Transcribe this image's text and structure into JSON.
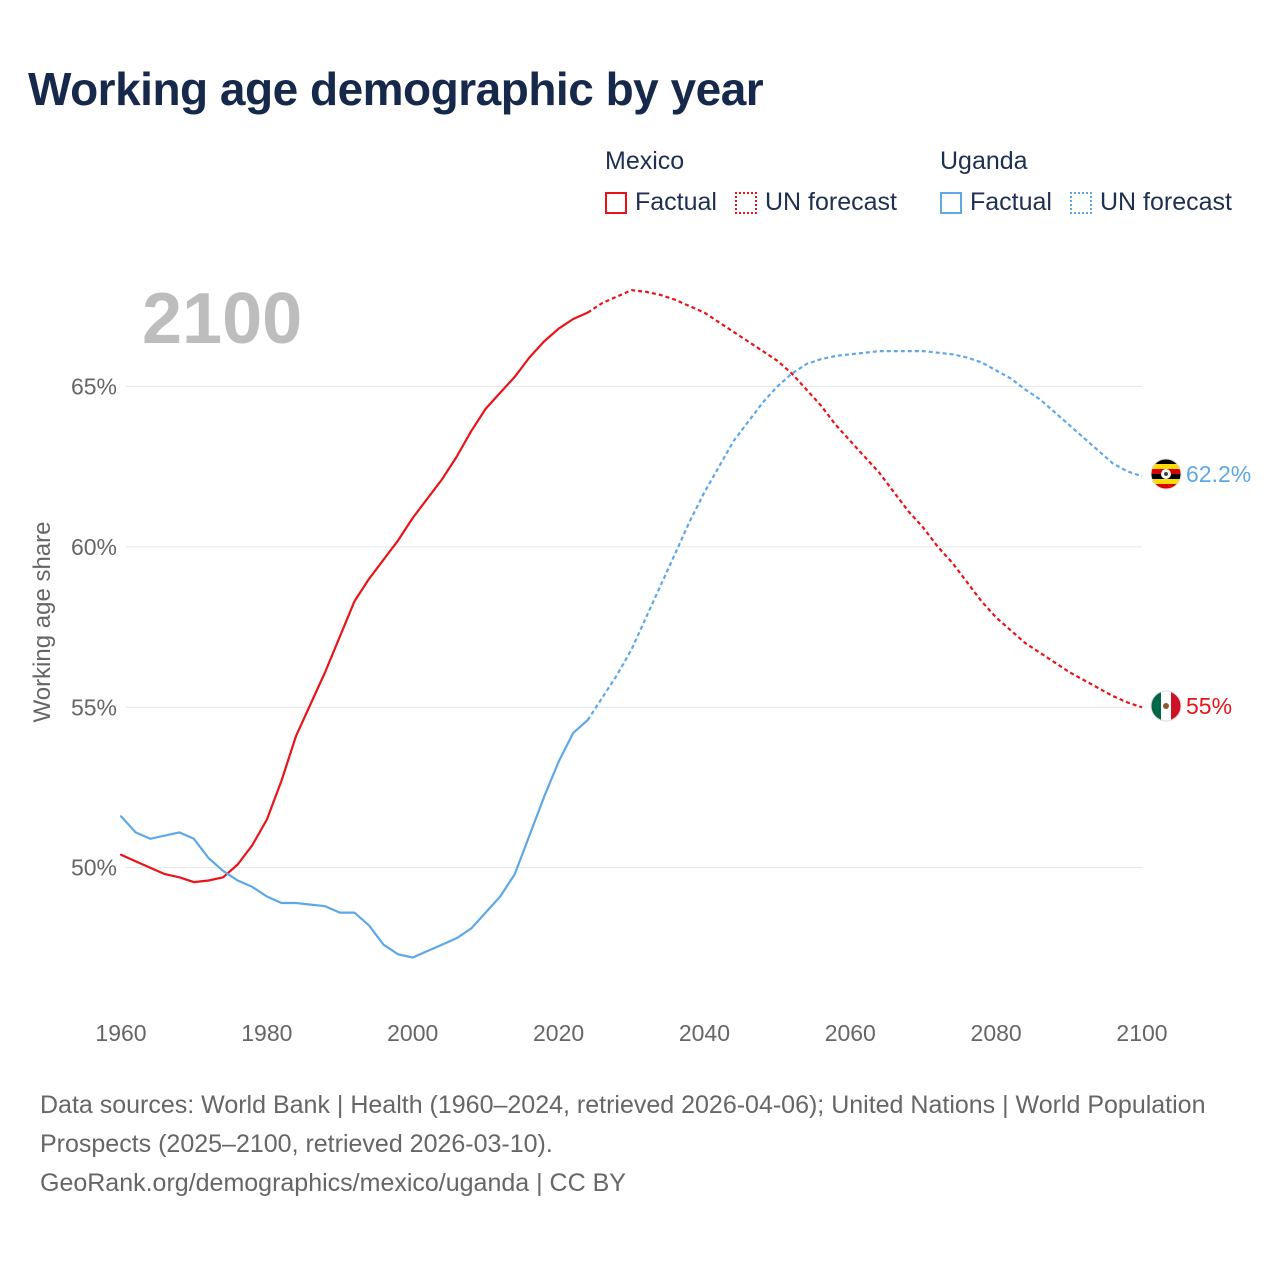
{
  "title": "Working age demographic by year",
  "colors": {
    "mexico": "#e8141a",
    "uganda": "#5ea8e8",
    "grid": "#e6e6e6",
    "axis_text": "#666666",
    "year_label": "#bdbdbd"
  },
  "legend": {
    "groups": [
      {
        "name": "Mexico",
        "items": [
          "Factual",
          "UN forecast"
        ]
      },
      {
        "name": "Uganda",
        "items": [
          "Factual",
          "UN forecast"
        ]
      }
    ]
  },
  "footer": {
    "line1": "Data sources: World Bank | Health (1960–2024, retrieved 2026-04-06); United Nations | World Population Prospects (2025–2100, retrieved 2026-03-10).",
    "line2": "GeoRank.org/demographics/mexico/uganda | CC BY"
  },
  "chart_data": {
    "type": "line",
    "title": "Working age demographic by year",
    "current_year_label": "2100",
    "xlabel": "",
    "ylabel": "Working age share",
    "xlim": [
      1960,
      2100
    ],
    "ylim": [
      46.0,
      70.0
    ],
    "x_ticks": [
      1960,
      1980,
      2000,
      2020,
      2040,
      2060,
      2080,
      2100
    ],
    "x_tick_labels": [
      "1960",
      "1980",
      "2000",
      "2020",
      "2040",
      "2060",
      "2080",
      "2100"
    ],
    "y_ticks": [
      50,
      55,
      60,
      65
    ],
    "y_tick_labels": [
      "50%",
      "55%",
      "60%",
      "65%"
    ],
    "series": [
      {
        "name": "Mexico",
        "role": "Factual",
        "color_key": "mexico",
        "dashed": false,
        "x": [
          1960,
          1962,
          1964,
          1966,
          1968,
          1970,
          1972,
          1974,
          1976,
          1978,
          1980,
          1982,
          1984,
          1986,
          1988,
          1990,
          1992,
          1994,
          1996,
          1998,
          2000,
          2002,
          2004,
          2006,
          2008,
          2010,
          2012,
          2014,
          2016,
          2018,
          2020,
          2022,
          2024
        ],
        "y": [
          50.4,
          50.2,
          50.0,
          49.8,
          49.7,
          49.55,
          49.6,
          49.7,
          50.1,
          50.7,
          51.5,
          52.7,
          54.1,
          55.1,
          56.1,
          57.2,
          58.3,
          59.0,
          59.6,
          60.2,
          60.9,
          61.5,
          62.1,
          62.8,
          63.6,
          64.3,
          64.8,
          65.3,
          65.9,
          66.4,
          66.8,
          67.1,
          67.3
        ]
      },
      {
        "name": "Mexico",
        "role": "UN forecast",
        "color_key": "mexico",
        "dashed": true,
        "x": [
          2024,
          2026,
          2028,
          2030,
          2032,
          2034,
          2036,
          2038,
          2040,
          2042,
          2044,
          2046,
          2048,
          2050,
          2052,
          2054,
          2056,
          2058,
          2060,
          2062,
          2064,
          2066,
          2068,
          2070,
          2072,
          2074,
          2076,
          2078,
          2080,
          2082,
          2084,
          2086,
          2088,
          2090,
          2092,
          2094,
          2096,
          2098,
          2100
        ],
        "y": [
          67.3,
          67.6,
          67.8,
          68.0,
          67.95,
          67.85,
          67.7,
          67.5,
          67.3,
          67.0,
          66.7,
          66.4,
          66.1,
          65.8,
          65.4,
          64.9,
          64.4,
          63.8,
          63.3,
          62.8,
          62.3,
          61.7,
          61.1,
          60.6,
          60.0,
          59.5,
          58.9,
          58.3,
          57.8,
          57.4,
          57.0,
          56.7,
          56.4,
          56.1,
          55.85,
          55.6,
          55.35,
          55.15,
          55.0
        ]
      },
      {
        "name": "Uganda",
        "role": "Factual",
        "color_key": "uganda",
        "dashed": false,
        "x": [
          1960,
          1962,
          1964,
          1966,
          1968,
          1970,
          1972,
          1974,
          1976,
          1978,
          1980,
          1982,
          1984,
          1986,
          1988,
          1990,
          1992,
          1994,
          1996,
          1998,
          2000,
          2002,
          2004,
          2006,
          2008,
          2010,
          2012,
          2014,
          2016,
          2018,
          2020,
          2022,
          2024
        ],
        "y": [
          51.6,
          51.1,
          50.9,
          51.0,
          51.1,
          50.9,
          50.3,
          49.9,
          49.6,
          49.4,
          49.1,
          48.9,
          48.9,
          48.85,
          48.8,
          48.6,
          48.6,
          48.2,
          47.6,
          47.3,
          47.2,
          47.4,
          47.6,
          47.8,
          48.1,
          48.6,
          49.1,
          49.8,
          51.0,
          52.2,
          53.3,
          54.2,
          54.6
        ]
      },
      {
        "name": "Uganda",
        "role": "UN forecast",
        "color_key": "uganda",
        "dashed": true,
        "x": [
          2024,
          2026,
          2028,
          2030,
          2032,
          2034,
          2036,
          2038,
          2040,
          2042,
          2044,
          2046,
          2048,
          2050,
          2052,
          2054,
          2056,
          2058,
          2060,
          2062,
          2064,
          2066,
          2068,
          2070,
          2072,
          2074,
          2076,
          2078,
          2080,
          2082,
          2084,
          2086,
          2088,
          2090,
          2092,
          2094,
          2096,
          2098,
          2100
        ],
        "y": [
          54.6,
          55.3,
          56.0,
          56.8,
          57.8,
          58.8,
          59.8,
          60.8,
          61.7,
          62.5,
          63.3,
          63.9,
          64.5,
          65.0,
          65.4,
          65.7,
          65.85,
          65.95,
          66.0,
          66.05,
          66.1,
          66.1,
          66.1,
          66.1,
          66.05,
          66.0,
          65.9,
          65.75,
          65.5,
          65.25,
          64.9,
          64.6,
          64.2,
          63.8,
          63.4,
          63.0,
          62.6,
          62.35,
          62.2
        ]
      }
    ],
    "end_labels": [
      {
        "series": "Uganda",
        "value": 62.2,
        "text": "62.2%",
        "flag": "uganda-flag"
      },
      {
        "series": "Mexico",
        "value": 55.0,
        "text": "55%",
        "flag": "mexico-flag"
      }
    ]
  }
}
